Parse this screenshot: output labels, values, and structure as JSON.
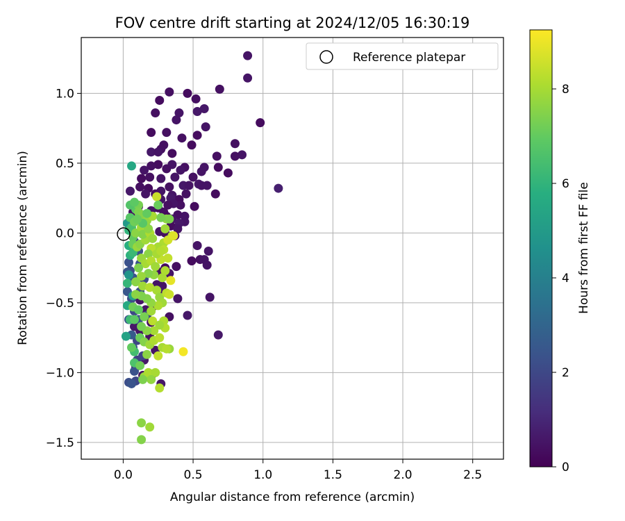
{
  "chart_data": {
    "type": "scatter",
    "title": "FOV centre drift starting at 2024/12/05 16:30:19",
    "xlabel": "Angular distance from reference (arcmin)",
    "ylabel": "Rotation from reference (arcmin)",
    "xlim": [
      -0.3,
      2.72
    ],
    "ylim": [
      -1.62,
      1.4
    ],
    "xticks": [
      0.0,
      0.5,
      1.0,
      1.5,
      2.0,
      2.5
    ],
    "xtick_labels": [
      "0.0",
      "0.5",
      "1.0",
      "1.5",
      "2.0",
      "2.5"
    ],
    "yticks": [
      -1.5,
      -1.0,
      -0.5,
      0.0,
      0.5,
      1.0
    ],
    "ytick_labels": [
      "−1.5",
      "−1.0",
      "−0.5",
      "0.0",
      "0.5",
      "1.0"
    ],
    "grid": true,
    "legend": {
      "position": "top-right",
      "label": "Reference platepar"
    },
    "reference_point": {
      "x": 0.0,
      "y": 0.0
    },
    "colorbar": {
      "label": "Hours from first FF file",
      "range": [
        0,
        9.25
      ],
      "ticks": [
        0,
        2,
        4,
        6,
        8
      ],
      "tick_labels": [
        "0",
        "2",
        "4",
        "6",
        "8"
      ],
      "colormap": "viridis"
    },
    "points": [
      [
        0.89,
        1.27,
        0.5
      ],
      [
        0.89,
        1.11,
        0.5
      ],
      [
        0.98,
        0.79,
        0.3
      ],
      [
        1.11,
        0.32,
        0.8
      ],
      [
        0.69,
        1.03,
        0.4
      ],
      [
        0.46,
        1.0,
        0.3
      ],
      [
        0.52,
        0.96,
        0.4
      ],
      [
        0.58,
        0.89,
        0.6
      ],
      [
        0.53,
        0.87,
        0.6
      ],
      [
        0.33,
        1.01,
        0.4
      ],
      [
        0.26,
        0.95,
        0.3
      ],
      [
        0.23,
        0.86,
        0.4
      ],
      [
        0.4,
        0.86,
        0.5
      ],
      [
        0.38,
        0.81,
        0.5
      ],
      [
        0.2,
        0.72,
        0.3
      ],
      [
        0.31,
        0.72,
        0.4
      ],
      [
        0.53,
        0.7,
        0.3
      ],
      [
        0.59,
        0.76,
        0.5
      ],
      [
        0.8,
        0.64,
        0.4
      ],
      [
        0.85,
        0.56,
        0.5
      ],
      [
        0.8,
        0.55,
        0.4
      ],
      [
        0.42,
        0.68,
        0.4
      ],
      [
        0.49,
        0.63,
        0.3
      ],
      [
        0.29,
        0.63,
        0.4
      ],
      [
        0.27,
        0.6,
        0.4
      ],
      [
        0.2,
        0.58,
        0.6
      ],
      [
        0.25,
        0.58,
        0.5
      ],
      [
        0.35,
        0.57,
        0.3
      ],
      [
        0.67,
        0.55,
        0.4
      ],
      [
        0.68,
        0.47,
        0.3
      ],
      [
        0.75,
        0.43,
        0.3
      ],
      [
        0.58,
        0.47,
        0.5
      ],
      [
        0.56,
        0.44,
        0.5
      ],
      [
        0.35,
        0.49,
        0.5
      ],
      [
        0.25,
        0.49,
        0.3
      ],
      [
        0.2,
        0.48,
        0.4
      ],
      [
        0.15,
        0.45,
        0.5
      ],
      [
        0.31,
        0.46,
        0.4
      ],
      [
        0.44,
        0.47,
        0.4
      ],
      [
        0.41,
        0.45,
        0.5
      ],
      [
        0.13,
        0.39,
        0.3
      ],
      [
        0.19,
        0.4,
        0.4
      ],
      [
        0.27,
        0.39,
        0.5
      ],
      [
        0.37,
        0.4,
        0.5
      ],
      [
        0.5,
        0.4,
        0.4
      ],
      [
        0.54,
        0.35,
        0.6
      ],
      [
        0.56,
        0.34,
        0.5
      ],
      [
        0.6,
        0.34,
        0.5
      ],
      [
        0.66,
        0.28,
        0.3
      ],
      [
        0.43,
        0.34,
        0.6
      ],
      [
        0.47,
        0.34,
        0.5
      ],
      [
        0.33,
        0.33,
        0.4
      ],
      [
        0.27,
        0.3,
        0.5
      ],
      [
        0.18,
        0.32,
        0.3
      ],
      [
        0.12,
        0.33,
        0.4
      ],
      [
        0.05,
        0.3,
        0.6
      ],
      [
        0.16,
        0.28,
        0.5
      ],
      [
        0.23,
        0.28,
        0.4
      ],
      [
        0.35,
        0.27,
        0.5
      ],
      [
        0.45,
        0.28,
        0.4
      ],
      [
        0.4,
        0.24,
        0.3
      ],
      [
        0.34,
        0.25,
        0.6
      ],
      [
        0.27,
        0.24,
        0.5
      ],
      [
        0.51,
        0.19,
        0.3
      ],
      [
        0.41,
        0.2,
        0.4
      ],
      [
        0.36,
        0.21,
        0.5
      ],
      [
        0.32,
        0.2,
        0.4
      ],
      [
        0.25,
        0.18,
        0.3
      ],
      [
        0.11,
        0.19,
        0.6
      ],
      [
        0.07,
        0.15,
        0.4
      ],
      [
        0.2,
        0.16,
        0.5
      ],
      [
        0.29,
        0.15,
        0.4
      ],
      [
        0.39,
        0.13,
        0.4
      ],
      [
        0.44,
        0.12,
        0.5
      ],
      [
        0.35,
        0.1,
        0.5
      ],
      [
        0.31,
        0.12,
        0.3
      ],
      [
        0.44,
        0.08,
        0.5
      ],
      [
        0.4,
        0.07,
        0.6
      ],
      [
        0.34,
        0.05,
        0.3
      ],
      [
        0.39,
        0.03,
        0.5
      ],
      [
        0.16,
        0.05,
        0.4
      ],
      [
        0.26,
        0.01,
        0.5
      ],
      [
        0.3,
        0.0,
        0.4
      ],
      [
        0.37,
        -0.02,
        0.3
      ],
      [
        0.53,
        -0.09,
        0.5
      ],
      [
        0.61,
        -0.13,
        0.5
      ],
      [
        0.55,
        -0.19,
        0.4
      ],
      [
        0.58,
        -0.19,
        0.5
      ],
      [
        0.6,
        -0.23,
        0.5
      ],
      [
        0.49,
        -0.2,
        0.3
      ],
      [
        0.38,
        -0.24,
        0.4
      ],
      [
        0.33,
        -0.29,
        0.5
      ],
      [
        0.3,
        -0.25,
        0.3
      ],
      [
        0.26,
        -0.28,
        0.4
      ],
      [
        0.28,
        -0.38,
        0.5
      ],
      [
        0.24,
        -0.37,
        0.5
      ],
      [
        0.26,
        -0.41,
        0.6
      ],
      [
        0.62,
        -0.46,
        0.5
      ],
      [
        0.39,
        -0.47,
        0.5
      ],
      [
        0.46,
        -0.59,
        0.6
      ],
      [
        0.33,
        -0.6,
        0.4
      ],
      [
        0.68,
        -0.73,
        0.6
      ],
      [
        0.21,
        -0.53,
        0.6
      ],
      [
        0.16,
        -0.55,
        0.5
      ],
      [
        0.12,
        -0.7,
        0.5
      ],
      [
        0.19,
        -0.74,
        0.4
      ],
      [
        0.23,
        -0.84,
        0.5
      ],
      [
        0.15,
        -0.91,
        0.6
      ],
      [
        0.09,
        -0.96,
        0.5
      ],
      [
        0.27,
        -1.08,
        0.6
      ],
      [
        0.21,
        -1.01,
        0.5
      ],
      [
        0.14,
        -1.02,
        0.4
      ],
      [
        0.12,
        -0.48,
        0.5
      ],
      [
        0.08,
        -0.67,
        0.6
      ],
      [
        0.2,
        -0.64,
        0.4
      ],
      [
        0.04,
        -0.21,
        2.3
      ],
      [
        0.05,
        -0.27,
        2.1
      ],
      [
        0.07,
        -0.32,
        2.4
      ],
      [
        0.03,
        -0.42,
        2.5
      ],
      [
        0.06,
        -0.47,
        2.2
      ],
      [
        0.08,
        -0.56,
        2.0
      ],
      [
        0.04,
        -0.62,
        2.4
      ],
      [
        0.1,
        -0.77,
        1.9
      ],
      [
        0.07,
        -0.82,
        2.2
      ],
      [
        0.1,
        -0.91,
        1.8
      ],
      [
        0.08,
        -0.99,
        2.3
      ],
      [
        0.09,
        -1.06,
        2.0
      ],
      [
        0.04,
        -1.07,
        2.2
      ],
      [
        0.06,
        -1.08,
        2.4
      ],
      [
        0.08,
        -0.06,
        2.1
      ],
      [
        0.11,
        -0.13,
        2.3
      ],
      [
        0.03,
        -0.28,
        2.5
      ],
      [
        0.12,
        -0.42,
        2.2
      ],
      [
        0.15,
        -0.33,
        2.0
      ],
      [
        0.11,
        -0.62,
        2.4
      ],
      [
        0.06,
        -0.73,
        2.6
      ],
      [
        0.17,
        -0.59,
        2.1
      ],
      [
        0.12,
        -0.22,
        2.3
      ],
      [
        0.14,
        -0.88,
        1.9
      ],
      [
        0.02,
        -0.74,
        5.3
      ],
      [
        0.06,
        0.48,
        5.5
      ],
      [
        0.03,
        0.07,
        5.0
      ],
      [
        0.04,
        -0.09,
        5.8
      ],
      [
        0.03,
        -0.52,
        5.6
      ],
      [
        0.04,
        -0.3,
        4.8
      ],
      [
        0.07,
        -0.45,
        5.3
      ],
      [
        0.05,
        -0.16,
        5.9
      ],
      [
        0.04,
        0.02,
        6.0
      ],
      [
        0.07,
        -0.14,
        6.2
      ],
      [
        0.03,
        -0.36,
        6.1
      ],
      [
        0.08,
        -0.85,
        6.4
      ],
      [
        0.08,
        -0.93,
        6.6
      ],
      [
        0.06,
        0.04,
        6.5
      ],
      [
        0.05,
        -0.62,
        6.3
      ],
      [
        0.05,
        0.11,
        6.8
      ],
      [
        0.07,
        -0.03,
        7.0
      ],
      [
        0.09,
        0.17,
        6.9
      ],
      [
        0.11,
        0.2,
        7.3
      ],
      [
        0.08,
        0.08,
        7.2
      ],
      [
        0.11,
        0.15,
        7.4
      ],
      [
        0.14,
        0.13,
        7.5
      ],
      [
        0.17,
        0.09,
        7.7
      ],
      [
        0.09,
        0.0,
        7.6
      ],
      [
        0.13,
        0.04,
        7.9
      ],
      [
        0.07,
        -0.08,
        7.1
      ],
      [
        0.1,
        -0.1,
        7.8
      ],
      [
        0.12,
        -0.08,
        7.6
      ],
      [
        0.16,
        -0.05,
        7.9
      ],
      [
        0.14,
        -0.01,
        7.5
      ],
      [
        0.19,
        0.0,
        8.1
      ],
      [
        0.21,
        0.12,
        8.0
      ],
      [
        0.24,
        0.26,
        8.5
      ],
      [
        0.31,
        0.1,
        7.7
      ],
      [
        0.3,
        0.03,
        7.9
      ],
      [
        0.35,
        -0.02,
        8.2
      ],
      [
        0.29,
        -0.07,
        8.1
      ],
      [
        0.25,
        -0.1,
        8.0
      ],
      [
        0.2,
        -0.11,
        8.3
      ],
      [
        0.18,
        -0.15,
        7.6
      ],
      [
        0.13,
        -0.18,
        7.8
      ],
      [
        0.16,
        -0.22,
        8.0
      ],
      [
        0.2,
        -0.2,
        8.2
      ],
      [
        0.23,
        -0.24,
        7.9
      ],
      [
        0.27,
        -0.19,
        8.4
      ],
      [
        0.29,
        -0.12,
        8.3
      ],
      [
        0.3,
        -0.27,
        8.1
      ],
      [
        0.28,
        -0.32,
        8.0
      ],
      [
        0.22,
        -0.3,
        7.7
      ],
      [
        0.18,
        -0.29,
        7.5
      ],
      [
        0.13,
        -0.31,
        7.8
      ],
      [
        0.11,
        -0.25,
        7.4
      ],
      [
        0.09,
        -0.35,
        7.6
      ],
      [
        0.14,
        -0.38,
        7.9
      ],
      [
        0.19,
        -0.39,
        8.2
      ],
      [
        0.24,
        -0.41,
        8.0
      ],
      [
        0.26,
        -0.46,
        7.8
      ],
      [
        0.31,
        -0.43,
        8.3
      ],
      [
        0.33,
        -0.44,
        8.5
      ],
      [
        0.34,
        -0.34,
        8.9
      ],
      [
        0.28,
        -0.5,
        7.9
      ],
      [
        0.25,
        -0.52,
        8.1
      ],
      [
        0.2,
        -0.5,
        7.7
      ],
      [
        0.17,
        -0.47,
        7.5
      ],
      [
        0.13,
        -0.45,
        7.4
      ],
      [
        0.09,
        -0.44,
        7.6
      ],
      [
        0.07,
        -0.53,
        7.2
      ],
      [
        0.11,
        -0.55,
        7.0
      ],
      [
        0.15,
        -0.6,
        7.3
      ],
      [
        0.2,
        -0.56,
        7.9
      ],
      [
        0.21,
        -0.63,
        8.3
      ],
      [
        0.29,
        -0.63,
        8.1
      ],
      [
        0.3,
        -0.68,
        8.2
      ],
      [
        0.26,
        -0.66,
        7.9
      ],
      [
        0.22,
        -0.7,
        8.0
      ],
      [
        0.17,
        -0.7,
        7.6
      ],
      [
        0.13,
        -0.67,
        7.3
      ],
      [
        0.12,
        -0.75,
        7.1
      ],
      [
        0.15,
        -0.78,
        7.5
      ],
      [
        0.19,
        -0.8,
        7.9
      ],
      [
        0.22,
        -0.77,
        8.1
      ],
      [
        0.26,
        -0.75,
        8.3
      ],
      [
        0.28,
        -0.82,
        8.0
      ],
      [
        0.33,
        -0.83,
        7.8
      ],
      [
        0.31,
        -0.83,
        8.2
      ],
      [
        0.43,
        -0.85,
        9.1
      ],
      [
        0.25,
        -0.88,
        8.4
      ],
      [
        0.17,
        -0.87,
        7.6
      ],
      [
        0.12,
        -0.95,
        7.2
      ],
      [
        0.15,
        -1.03,
        7.8
      ],
      [
        0.18,
        -1.0,
        8.1
      ],
      [
        0.23,
        -1.0,
        8.0
      ],
      [
        0.2,
        -1.05,
        7.7
      ],
      [
        0.14,
        -1.05,
        7.4
      ],
      [
        0.26,
        -1.11,
        8.2
      ],
      [
        0.13,
        -1.36,
        7.6
      ],
      [
        0.19,
        -1.39,
        7.9
      ],
      [
        0.13,
        -1.48,
        7.5
      ],
      [
        0.06,
        -0.82,
        7.0
      ],
      [
        0.08,
        -0.62,
        6.9
      ],
      [
        0.32,
        -0.05,
        8.6
      ],
      [
        0.36,
        -0.02,
        8.8
      ],
      [
        0.33,
        0.1,
        7.4
      ],
      [
        0.25,
        0.2,
        7.1
      ],
      [
        0.27,
        0.11,
        7.3
      ],
      [
        0.18,
        0.03,
        7.6
      ],
      [
        0.21,
        -0.04,
        7.8
      ],
      [
        0.24,
        -0.15,
        8.0
      ],
      [
        0.27,
        -0.13,
        8.2
      ],
      [
        0.32,
        -0.18,
        8.4
      ],
      [
        0.14,
        0.07,
        6.8
      ],
      [
        0.17,
        0.14,
        7.0
      ],
      [
        0.05,
        0.2,
        6.7
      ],
      [
        0.08,
        0.22,
        6.9
      ],
      [
        0.1,
        0.1,
        7.1
      ]
    ]
  }
}
